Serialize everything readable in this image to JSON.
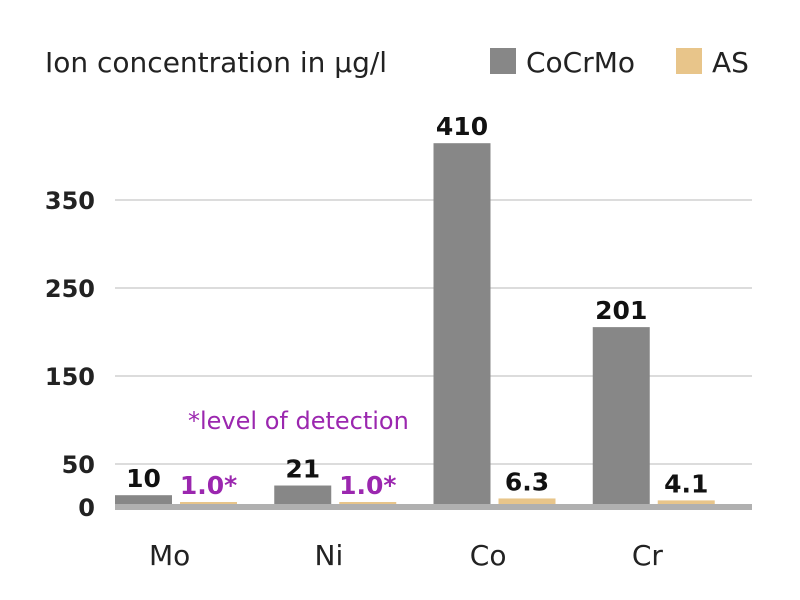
{
  "chart_data": {
    "type": "bar",
    "title": "Ion concentration in µg/l",
    "categories": [
      "Mo",
      "Ni",
      "Co",
      "Cr"
    ],
    "series": [
      {
        "name": "CoCrMo",
        "values": [
          10,
          21,
          410,
          201
        ],
        "labels": [
          "10",
          "21",
          "410",
          "201"
        ],
        "color": "#878787",
        "label_color": "#111111"
      },
      {
        "name": "AS",
        "values": [
          1.0,
          1.0,
          6.3,
          4.1
        ],
        "labels": [
          "1.0*",
          "1.0*",
          "6.3",
          "4.1"
        ],
        "color": "#e8c58a",
        "label_color_detection": "#9b27af",
        "label_color": "#111111"
      }
    ],
    "yticks": [
      0,
      50,
      150,
      250,
      350
    ],
    "ylim": [
      0,
      420
    ],
    "grid": true,
    "legend": "top-right",
    "annotation": "*level of detection",
    "annotation_color": "#9b27af"
  }
}
